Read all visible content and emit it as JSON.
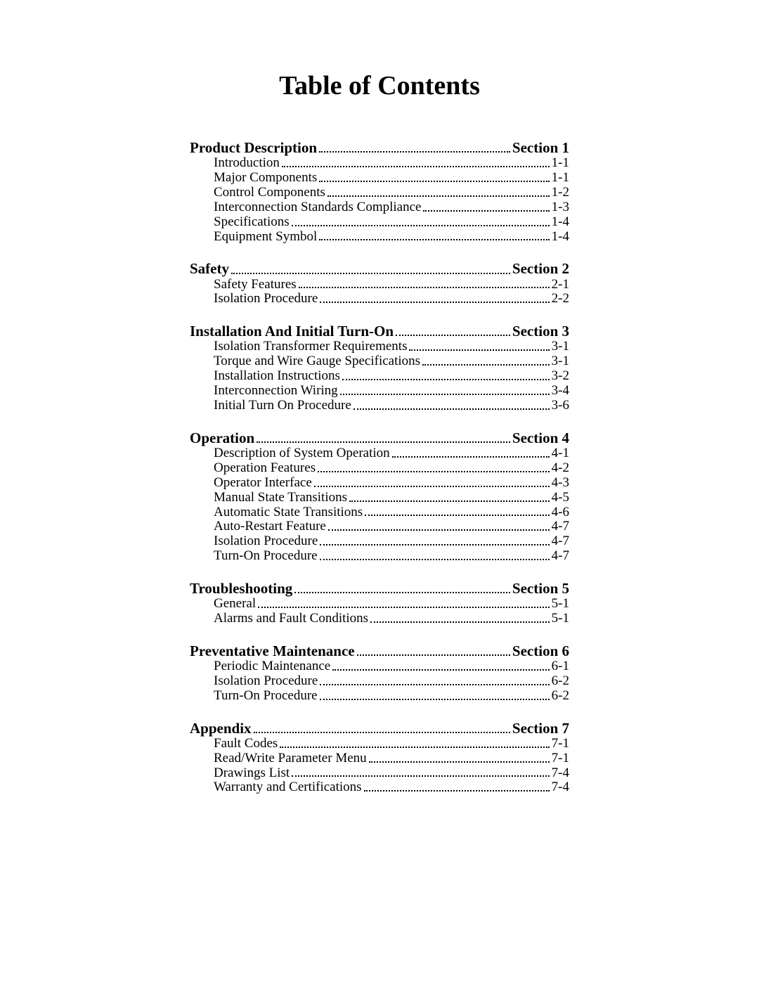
{
  "title": "Table of Contents",
  "sections": [
    {
      "heading": {
        "label": "Product Description",
        "page": "Section 1"
      },
      "items": [
        {
          "label": "Introduction",
          "page": "1-1"
        },
        {
          "label": "Major Components",
          "page": "1-1"
        },
        {
          "label": "Control Components",
          "page": "1-2"
        },
        {
          "label": "Interconnection Standards Compliance",
          "page": "1-3"
        },
        {
          "label": "Specifications",
          "page": "1-4"
        },
        {
          "label": "Equipment Symbol",
          "page": "1-4"
        }
      ]
    },
    {
      "heading": {
        "label": "Safety",
        "page": "Section 2"
      },
      "items": [
        {
          "label": "Safety Features",
          "page": "2-1"
        },
        {
          "label": "Isolation Procedure",
          "page": "2-2"
        }
      ]
    },
    {
      "heading": {
        "label": "Installation And Initial Turn-On",
        "page": "Section 3"
      },
      "items": [
        {
          "label": "Isolation Transformer Requirements",
          "page": "3-1"
        },
        {
          "label": "Torque and Wire Gauge Specifications",
          "page": "3-1"
        },
        {
          "label": "Installation Instructions",
          "page": "3-2"
        },
        {
          "label": "Interconnection Wiring",
          "page": "3-4"
        },
        {
          "label": "Initial Turn On Procedure",
          "page": "3-6"
        }
      ]
    },
    {
      "heading": {
        "label": "Operation",
        "page": "Section 4"
      },
      "items": [
        {
          "label": "Description of System Operation",
          "page": "4-1"
        },
        {
          "label": "Operation Features",
          "page": "4-2"
        },
        {
          "label": "Operator Interface",
          "page": "4-3"
        },
        {
          "label": "Manual State Transitions",
          "page": "4-5"
        },
        {
          "label": "Automatic State Transitions",
          "page": "4-6"
        },
        {
          "label": "Auto-Restart Feature",
          "page": "4-7"
        },
        {
          "label": "Isolation Procedure",
          "page": "4-7"
        },
        {
          "label": "Turn-On Procedure",
          "page": "4-7"
        }
      ]
    },
    {
      "heading": {
        "label": "Troubleshooting",
        "page": "Section 5"
      },
      "items": [
        {
          "label": "General",
          "page": "5-1"
        },
        {
          "label": "Alarms and Fault Conditions",
          "page": "5-1"
        }
      ]
    },
    {
      "heading": {
        "label": "Preventative Maintenance",
        "page": "Section 6"
      },
      "items": [
        {
          "label": "Periodic Maintenance",
          "page": "6-1"
        },
        {
          "label": "Isolation Procedure",
          "page": "6-2"
        },
        {
          "label": "Turn-On Procedure",
          "page": "6-2"
        }
      ]
    },
    {
      "heading": {
        "label": "Appendix",
        "page": "Section 7"
      },
      "items": [
        {
          "label": "Fault Codes",
          "page": "7-1"
        },
        {
          "label": "Read/Write Parameter Menu",
          "page": "7-1"
        },
        {
          "label": "Drawings List",
          "page": "7-4"
        },
        {
          "label": "Warranty and Certifications",
          "page": "7-4"
        }
      ]
    }
  ]
}
